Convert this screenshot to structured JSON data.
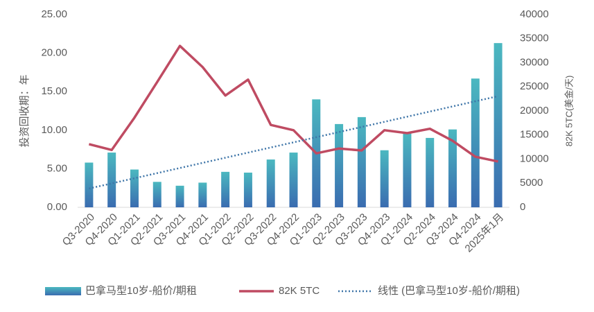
{
  "chart_data": {
    "type": "bar",
    "categories": [
      "Q3-2020",
      "Q4-2020",
      "Q1-2021",
      "Q2-2021",
      "Q3-2021",
      "Q4-2021",
      "Q1-2022",
      "Q2-2022",
      "Q3-2022",
      "Q4-2022",
      "Q1-2023",
      "Q2-2023",
      "Q3-2023",
      "Q4-2023",
      "Q1-2024",
      "Q2-2024",
      "Q3-2024",
      "Q4-2024",
      "2025年1月"
    ],
    "series": [
      {
        "name": "巴拿马型10岁-船价/期租",
        "type": "bar",
        "color": "#4bb8c0",
        "color2": "#3a6cb0",
        "values": [
          5.8,
          7.1,
          4.9,
          3.3,
          2.8,
          3.2,
          4.6,
          4.5,
          6.2,
          7.1,
          14.0,
          10.8,
          11.7,
          7.4,
          9.6,
          9.0,
          10.1,
          16.7,
          21.3
        ]
      },
      {
        "name": "82K 5TC",
        "type": "line",
        "axis": "y2",
        "color": "#bf4b62",
        "values": [
          13100,
          11900,
          18600,
          26000,
          33500,
          29100,
          23200,
          26500,
          17100,
          16000,
          11200,
          12200,
          11800,
          16000,
          15400,
          16300,
          13800,
          10500,
          9500
        ]
      }
    ],
    "trendline": {
      "name": "线性 (巴拿马型10岁-船价/期租)",
      "of": 0,
      "color": "#3e75a8"
    },
    "ylabel": "投资回收期：年",
    "y2label": "82K 5TC(美金/天)",
    "ylim": [
      0,
      25
    ],
    "yticks": [
      {
        "value": 0,
        "label": "0.00"
      },
      {
        "value": 5,
        "label": "5.00"
      },
      {
        "value": 10,
        "label": "10.00"
      },
      {
        "value": 15,
        "label": "15.00"
      },
      {
        "value": 20,
        "label": "20.00"
      },
      {
        "value": 25,
        "label": "25.00"
      }
    ],
    "y2lim": [
      0,
      40000
    ],
    "y2ticks": [
      0,
      5000,
      10000,
      15000,
      20000,
      25000,
      30000,
      35000,
      40000
    ],
    "legend": "bottom"
  }
}
